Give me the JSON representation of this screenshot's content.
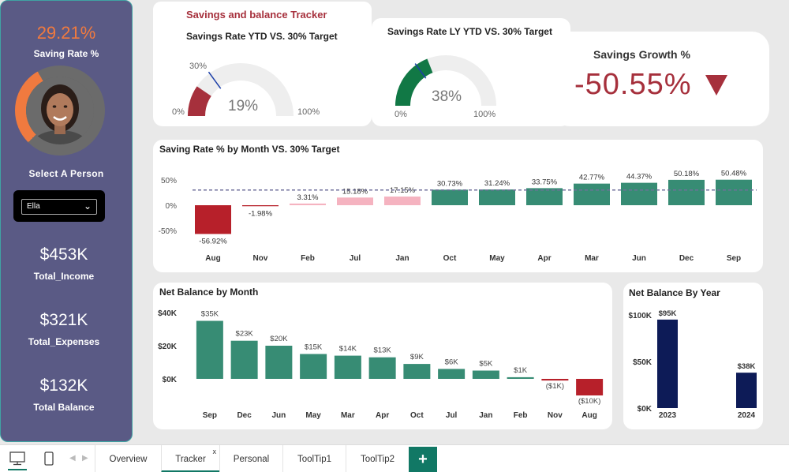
{
  "sidebar": {
    "saving_rate_value": "29.21%",
    "saving_rate_fraction": 0.2921,
    "saving_rate_label": "Saving Rate %",
    "select_label": "Select A Person",
    "selected_person": "Ella",
    "income_value": "$453K",
    "income_label": "Total_Income",
    "expenses_value": "$321K",
    "expenses_label": "Total_Expenses",
    "balance_value": "$132K",
    "balance_label": "Total Balance"
  },
  "header": {
    "title": "Savings and balance Tracker"
  },
  "gauge_ytd": {
    "title": "Savings Rate YTD VS. 30% Target",
    "value_label": "19%",
    "value": 0.19,
    "target": 0.3,
    "target_label": "30%",
    "min_label": "0%",
    "max_label": "100%",
    "fill_color": "#a6303c"
  },
  "gauge_ly": {
    "title": "Savings Rate LY YTD VS. 30% Target",
    "value_label": "38%",
    "value": 0.38,
    "target": 0.3,
    "min_label": "0%",
    "max_label": "100%",
    "fill_color": "#117845"
  },
  "growth": {
    "title": "Savings Growth %",
    "value": "-50.55%",
    "arrow_icon": "down-triangle-icon",
    "color": "#a6303c"
  },
  "colors": {
    "positive_high": "#378c74",
    "positive_low": "#f5b3c0",
    "negative": "#b7202a",
    "dark_bar": "#0d1b57",
    "brand_green": "#117865"
  },
  "chart_data": [
    {
      "type": "bar",
      "title": "Saving Rate % by Month VS. 30% Target",
      "categories": [
        "Aug",
        "Nov",
        "Feb",
        "Jul",
        "Jan",
        "Oct",
        "May",
        "Apr",
        "Mar",
        "Jun",
        "Dec",
        "Sep"
      ],
      "values": [
        -56.92,
        -1.98,
        3.31,
        15.18,
        17.15,
        30.73,
        31.24,
        33.75,
        42.77,
        44.37,
        50.18,
        50.48
      ],
      "data_labels": [
        "-56.92%",
        "-1.98%",
        "3.31%",
        "15.18%",
        "17.15%",
        "30.73%",
        "31.24%",
        "33.75%",
        "42.77%",
        "44.37%",
        "50.18%",
        "50.48%"
      ],
      "y_ticks": [
        "50%",
        "0%",
        "-50%"
      ],
      "target_line": 30,
      "ylim": [
        -60,
        55
      ]
    },
    {
      "type": "bar",
      "title": "Net Balance by Month",
      "categories": [
        "Sep",
        "Dec",
        "Jun",
        "May",
        "Mar",
        "Apr",
        "Oct",
        "Jul",
        "Jan",
        "Feb",
        "Nov",
        "Aug"
      ],
      "values": [
        35,
        23,
        20,
        15,
        14,
        13,
        9,
        6,
        5,
        1,
        -1,
        -10
      ],
      "data_labels": [
        "$35K",
        "$23K",
        "$20K",
        "$15K",
        "$14K",
        "$13K",
        "$9K",
        "$6K",
        "$5K",
        "$1K",
        "($1K)",
        "($10K)"
      ],
      "y_ticks": [
        "$40K",
        "$20K",
        "$0K"
      ],
      "ylim": [
        -12,
        40
      ]
    },
    {
      "type": "bar",
      "title": "Net Balance By Year",
      "categories": [
        "2023",
        "2024"
      ],
      "values": [
        95,
        38
      ],
      "data_labels": [
        "$95K",
        "$38K"
      ],
      "y_ticks": [
        "$100K",
        "$50K",
        "$0K"
      ],
      "ylim": [
        0,
        100
      ]
    }
  ],
  "tabs": {
    "items": [
      "Overview",
      "Tracker",
      "Personal",
      "ToolTip1",
      "ToolTip2"
    ],
    "active": "Tracker",
    "close_glyph": "x",
    "add_label": "+"
  }
}
